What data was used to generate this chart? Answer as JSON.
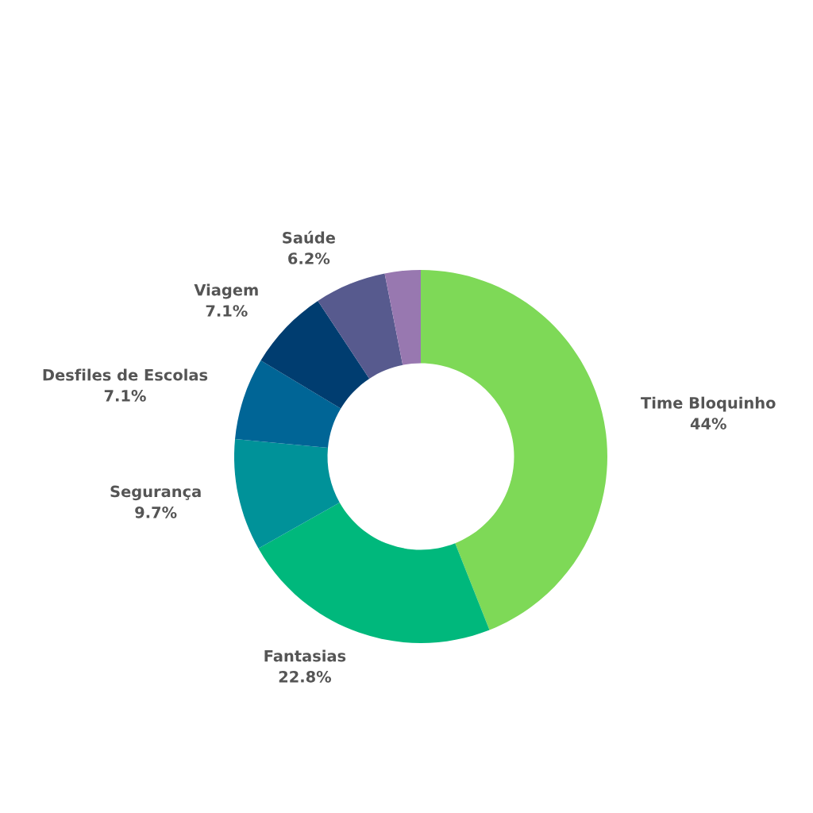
{
  "chart_data": {
    "type": "donut",
    "categories": [
      "Time Bloquinho",
      "Fantasias",
      "Segurança",
      "Desfiles de Escolas",
      "Viagem",
      "Saúde",
      null
    ],
    "values": [
      44,
      22.8,
      9.7,
      7.1,
      7.1,
      6.2,
      3.1
    ],
    "value_labels": [
      "44%",
      "22.8%",
      "9.7%",
      "7.1%",
      "7.1%",
      "6.2%",
      null
    ],
    "colors": [
      "#7ed957",
      "#00b87c",
      "#009299",
      "#006596",
      "#003d70",
      "#575a8e",
      "#9878b0"
    ],
    "legend": false
  }
}
